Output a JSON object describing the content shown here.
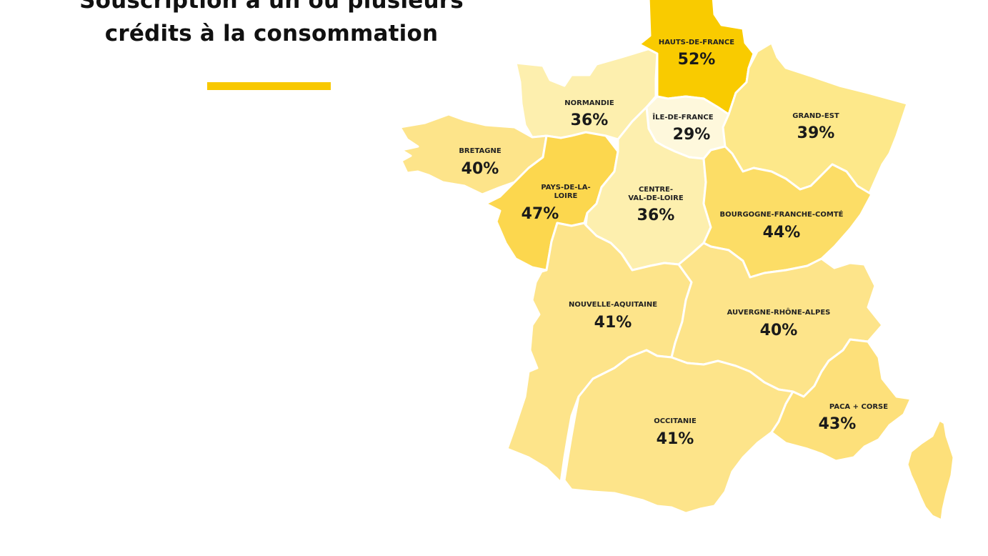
{
  "header": {
    "title_line1": "Souscription à un ou plusieurs",
    "title_line2": "crédits à la consommation"
  },
  "colors": {
    "accent": "#f8c800"
  },
  "regions": {
    "hauts_de_france": {
      "name": "HAUTS-DE-FRANCE",
      "value": "52%",
      "color": "#f9cb00"
    },
    "normandie": {
      "name": "NORMANDIE",
      "value": "36%",
      "color": "#fdefae"
    },
    "ile_de_france": {
      "name": "ÎLE-DE-FRANCE",
      "value": "29%",
      "color": "#fef8dc"
    },
    "grand_est": {
      "name": "GRAND-EST",
      "value": "39%",
      "color": "#fde88a"
    },
    "bretagne": {
      "name": "BRETAGNE",
      "value": "40%",
      "color": "#fde48a"
    },
    "pays_de_la_loire": {
      "name_line1": "PAYS-DE-LA-",
      "name_line2": "LOIRE",
      "value": "47%",
      "color": "#fcd74e"
    },
    "centre_val_de_loire": {
      "name_line1": "CENTRE-",
      "name_line2": "VAL-DE-LOIRE",
      "value": "36%",
      "color": "#fdefae"
    },
    "bourgogne_franche_comte": {
      "name": "BOURGOGNE-FRANCHE-COMTÉ",
      "value": "44%",
      "color": "#fcdd66"
    },
    "nouvelle_aquitaine": {
      "name": "NOUVELLE-AQUITAINE",
      "value": "41%",
      "color": "#fde48a"
    },
    "auvergne_rhone_alpes": {
      "name": "AUVERGNE-RHÔNE-ALPES",
      "value": "40%",
      "color": "#fde48a"
    },
    "occitanie": {
      "name": "OCCITANIE",
      "value": "41%",
      "color": "#fde48a"
    },
    "paca_corse": {
      "name": "PACA + CORSE",
      "value": "43%",
      "color": "#fde07a"
    }
  }
}
